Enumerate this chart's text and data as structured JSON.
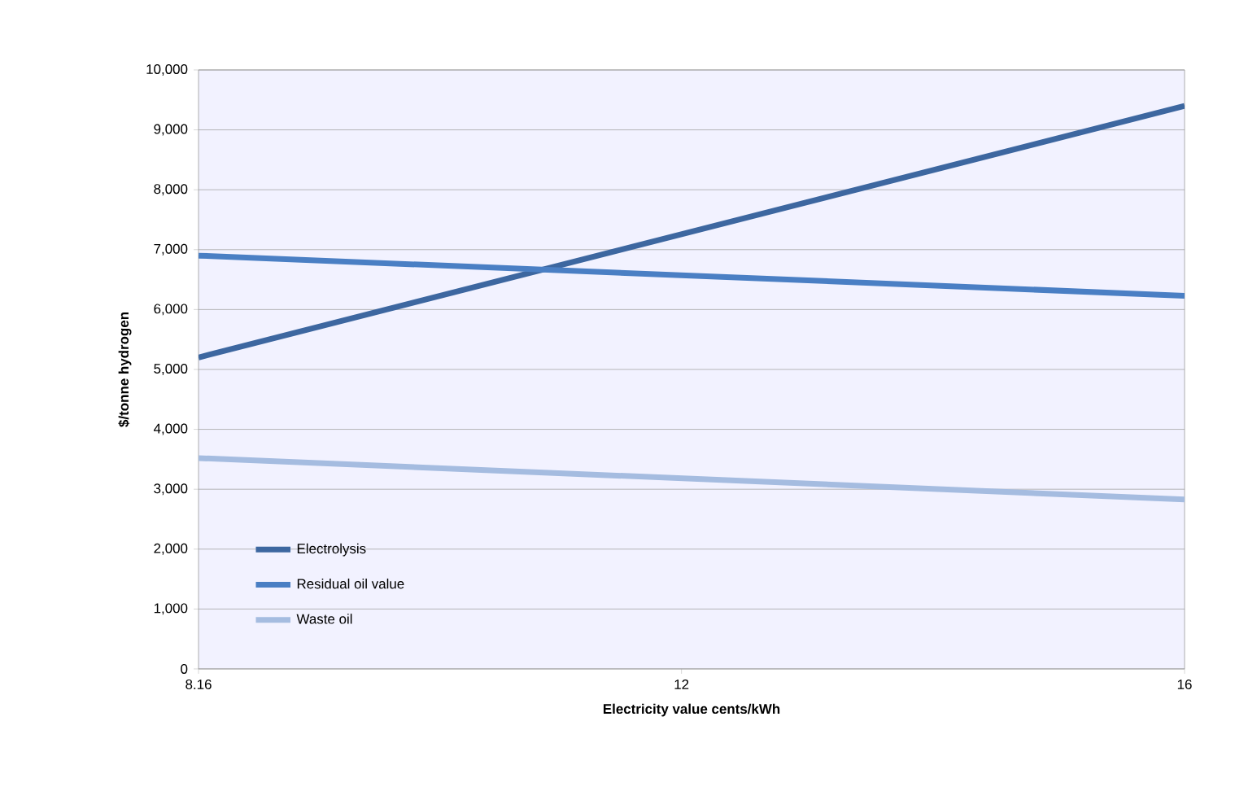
{
  "chart_data": {
    "type": "line",
    "xlabel": "Electricity value cents/kWh",
    "ylabel": "$/tonne hydrogen",
    "x": [
      8.16,
      16
    ],
    "series": [
      {
        "name": "Electrolysis",
        "color": "#3d67a0",
        "values": [
          5200,
          9400
        ]
      },
      {
        "name": "Residual oil value",
        "color": "#4a7fc4",
        "values": [
          6900,
          6230
        ]
      },
      {
        "name": "Waste oil",
        "color": "#a5bce0",
        "values": [
          3520,
          2830
        ]
      }
    ],
    "xlim": [
      8.16,
      16
    ],
    "xticks": [
      8.16,
      12,
      16
    ],
    "ylim": [
      0,
      10000
    ],
    "yticks": [
      {
        "value": 0,
        "label": "0"
      },
      {
        "value": 1000,
        "label": "1,000"
      },
      {
        "value": 2000,
        "label": "2,000"
      },
      {
        "value": 3000,
        "label": "3,000"
      },
      {
        "value": 4000,
        "label": "4,000"
      },
      {
        "value": 5000,
        "label": "5,000"
      },
      {
        "value": 6000,
        "label": "6,000"
      },
      {
        "value": 7000,
        "label": "7,000"
      },
      {
        "value": 8000,
        "label": "8,000"
      },
      {
        "value": 9000,
        "label": "9,000"
      },
      {
        "value": 10000,
        "label": "10,000"
      }
    ],
    "grid": "y",
    "legend": "bottom left",
    "marker": "none",
    "line_style": "solid"
  }
}
